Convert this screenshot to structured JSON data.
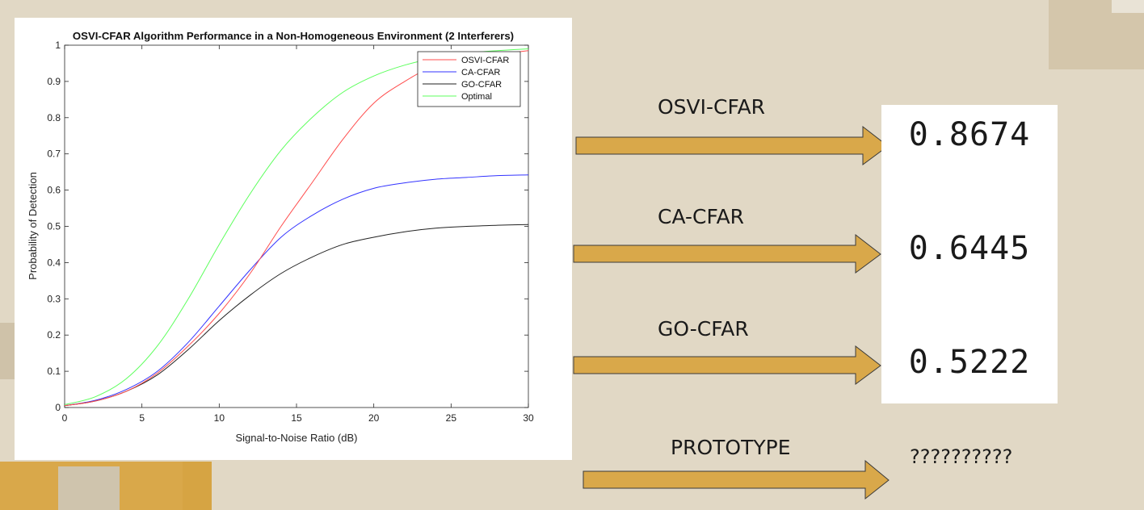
{
  "colors": {
    "background": "#e1d8c5",
    "arrow_fill": "#d9a84a",
    "arrow_stroke": "#3a3a3a",
    "osvi": "#ff4d4d",
    "ca": "#3333ff",
    "go": "#222222",
    "optimal": "#5cff5c"
  },
  "chart_data": {
    "type": "line",
    "title": "OSVI-CFAR Algorithm Performance in a Non-Homogeneous Environment (2 Interferers)",
    "xlabel": "Signal-to-Noise Ratio (dB)",
    "ylabel": "Probability of Detection",
    "xlim": [
      0,
      30
    ],
    "ylim": [
      0,
      1
    ],
    "xticks": [
      "0",
      "5",
      "10",
      "15",
      "20",
      "25",
      "30"
    ],
    "yticks": [
      "0",
      "0.1",
      "0.2",
      "0.3",
      "0.4",
      "0.5",
      "0.6",
      "0.7",
      "0.8",
      "0.9",
      "1"
    ],
    "legend_position": "top-right",
    "grid": false,
    "x": [
      0,
      2,
      4,
      6,
      8,
      10,
      12,
      14,
      16,
      18,
      20,
      22,
      24,
      26,
      28,
      30
    ],
    "series": [
      {
        "name": "OSVI-CFAR",
        "color": "#ff4d4d",
        "values": [
          0.005,
          0.018,
          0.045,
          0.095,
          0.17,
          0.26,
          0.37,
          0.5,
          0.62,
          0.74,
          0.84,
          0.9,
          0.945,
          0.965,
          0.975,
          0.985
        ]
      },
      {
        "name": "CA-CFAR",
        "color": "#3333ff",
        "values": [
          0.005,
          0.02,
          0.05,
          0.1,
          0.18,
          0.28,
          0.38,
          0.47,
          0.53,
          0.575,
          0.605,
          0.62,
          0.63,
          0.635,
          0.64,
          0.642
        ]
      },
      {
        "name": "GO-CFAR",
        "color": "#222222",
        "values": [
          0.005,
          0.018,
          0.045,
          0.09,
          0.16,
          0.24,
          0.31,
          0.37,
          0.415,
          0.45,
          0.47,
          0.485,
          0.495,
          0.5,
          0.503,
          0.505
        ]
      },
      {
        "name": "Optimal",
        "color": "#5cff5c",
        "values": [
          0.008,
          0.03,
          0.08,
          0.17,
          0.3,
          0.45,
          0.59,
          0.71,
          0.8,
          0.87,
          0.915,
          0.945,
          0.965,
          0.978,
          0.985,
          0.99
        ]
      }
    ]
  },
  "results": [
    {
      "label": "OSVI-CFAR",
      "value": "0.8674"
    },
    {
      "label": "CA-CFAR",
      "value": "0.6445"
    },
    {
      "label": "GO-CFAR",
      "value": "0.5222"
    },
    {
      "label": "PROTOTYPE",
      "value": "??????????"
    }
  ]
}
